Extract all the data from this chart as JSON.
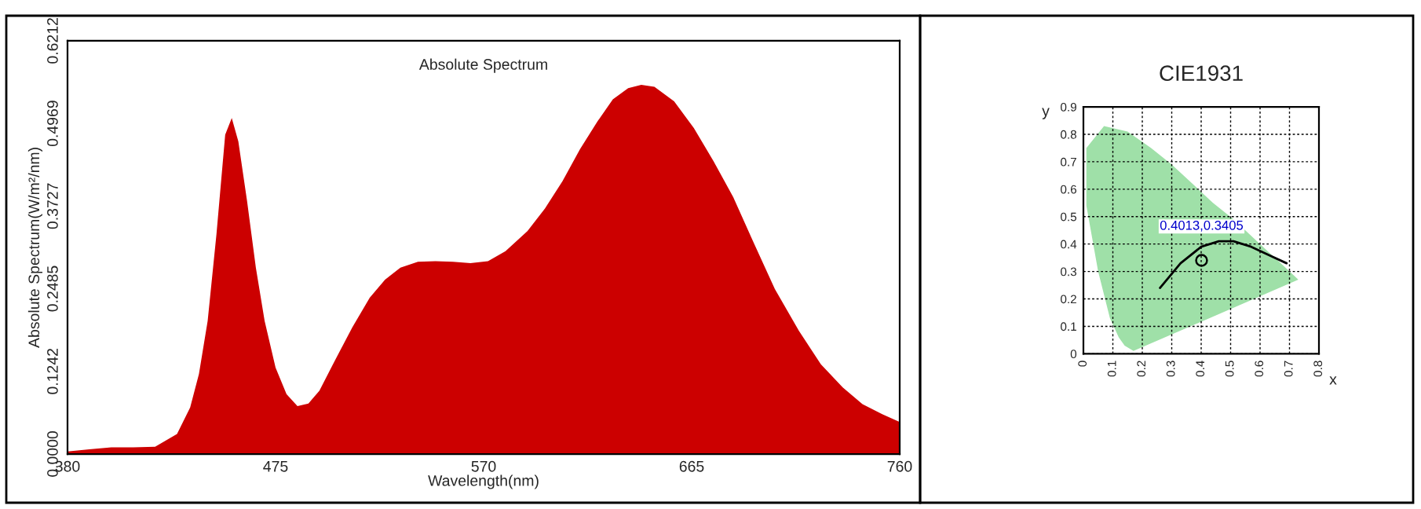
{
  "chart_data": [
    {
      "type": "area",
      "title": "Absolute Spectrum",
      "xlabel": "Wavelength(nm)",
      "ylabel": "Absolute Spectrum(W/m²/nm)",
      "x": [
        380,
        390,
        400,
        410,
        420,
        430,
        436,
        440,
        444,
        448,
        452,
        455,
        458,
        462,
        466,
        470,
        475,
        480,
        485,
        490,
        495,
        502,
        510,
        518,
        525,
        532,
        540,
        548,
        556,
        564,
        572,
        580,
        590,
        598,
        606,
        614,
        622,
        629,
        636,
        642,
        648,
        657,
        666,
        675,
        684,
        693,
        703,
        714,
        724,
        734,
        743,
        752,
        760
      ],
      "series": [
        {
          "color": "#cc0000",
          "values": [
            0.004,
            0.007,
            0.01,
            0.01,
            0.011,
            0.03,
            0.07,
            0.12,
            0.2,
            0.33,
            0.48,
            0.505,
            0.47,
            0.38,
            0.28,
            0.2,
            0.13,
            0.09,
            0.072,
            0.076,
            0.095,
            0.14,
            0.19,
            0.235,
            0.262,
            0.28,
            0.289,
            0.29,
            0.289,
            0.287,
            0.29,
            0.305,
            0.335,
            0.369,
            0.41,
            0.458,
            0.5,
            0.533,
            0.55,
            0.555,
            0.552,
            0.53,
            0.49,
            0.44,
            0.386,
            0.32,
            0.248,
            0.185,
            0.135,
            0.1,
            0.075,
            0.06,
            0.048
          ]
        }
      ],
      "xlim": [
        380,
        760
      ],
      "xticks": [
        380,
        475,
        570,
        665,
        760
      ],
      "ylim": [
        0,
        0.6212
      ],
      "yticks": [
        {
          "value": 0,
          "label": "0.0000"
        },
        0.1242,
        0.2485,
        0.3727,
        0.4969,
        0.6212
      ],
      "grid": false
    },
    {
      "type": "scatter",
      "title": "CIE1931",
      "xlabel": "x",
      "ylabel": "y",
      "series": [
        {
          "type": "area",
          "color": "#9fe0a8",
          "x": [
            0.17,
            0.14,
            0.12,
            0.09,
            0.05,
            0.01,
            0.01,
            0.07,
            0.15,
            0.23,
            0.3,
            0.37,
            0.44,
            0.51,
            0.58,
            0.63,
            0.67,
            0.73
          ],
          "values": [
            0.01,
            0.03,
            0.06,
            0.13,
            0.3,
            0.54,
            0.75,
            0.83,
            0.81,
            0.75,
            0.69,
            0.62,
            0.55,
            0.49,
            0.42,
            0.37,
            0.33,
            0.27
          ]
        },
        {
          "type": "line",
          "color": "#000000",
          "x": [
            0.26,
            0.33,
            0.4,
            0.46,
            0.51,
            0.57,
            0.63,
            0.69
          ],
          "values": [
            0.24,
            0.33,
            0.39,
            0.41,
            0.41,
            0.39,
            0.36,
            0.33
          ]
        },
        {
          "type": "scatter",
          "color": "#000000",
          "marker": "circle",
          "x": [
            0.4013
          ],
          "values": [
            0.3405
          ]
        }
      ],
      "annotations": [
        {
          "text": "0.4013,0.3405",
          "x": 0.4013,
          "y": 0.3405
        }
      ],
      "xlim": [
        0,
        0.8
      ],
      "xticks": [
        0,
        0.1,
        0.2,
        0.3,
        0.4,
        0.5,
        0.6,
        0.7,
        0.8
      ],
      "ylim": [
        0,
        0.9
      ],
      "yticks": [
        0,
        0.1,
        0.2,
        0.3,
        0.4,
        0.5,
        0.6,
        0.7,
        0.8,
        0.9
      ],
      "grid": true
    }
  ]
}
